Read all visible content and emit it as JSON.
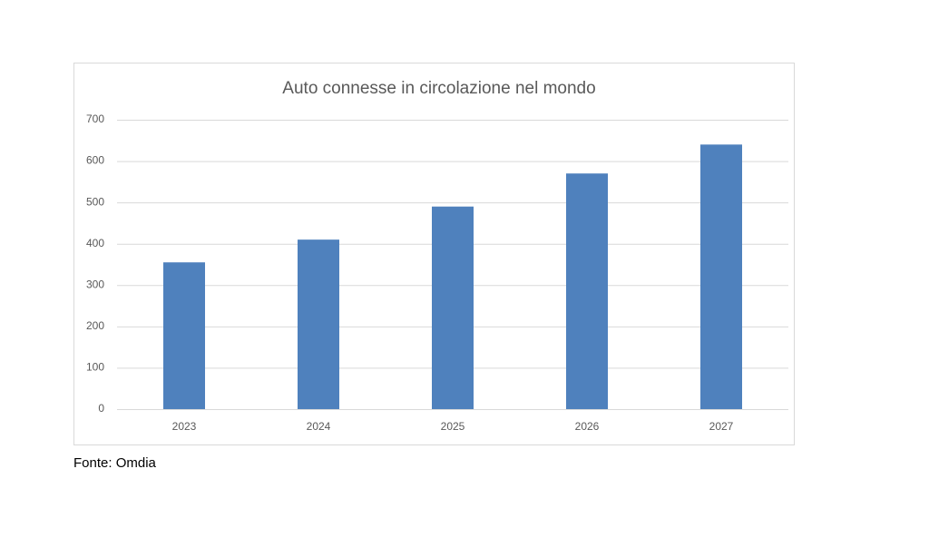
{
  "chart_data": {
    "type": "bar",
    "title": "Auto connesse in circolazione nel mondo",
    "categories": [
      "2023",
      "2024",
      "2025",
      "2026",
      "2027"
    ],
    "values": [
      355,
      410,
      490,
      570,
      640
    ],
    "color": "#4f81bd",
    "ylim": [
      0,
      700
    ],
    "yticks": [
      0,
      100,
      200,
      300,
      400,
      500,
      600,
      700
    ],
    "grid": true,
    "source": "Fonte: Omdia"
  }
}
